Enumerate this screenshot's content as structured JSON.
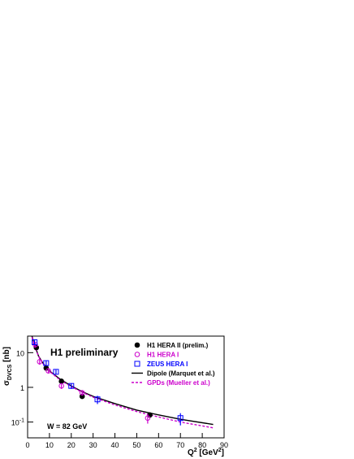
{
  "chart_data": {
    "type": "scatter",
    "annotations": [
      "H1 preliminary",
      "W = 82 GeV"
    ],
    "xlabel": {
      "symbol": "Q",
      "sup": "2",
      "unit": " [GeV",
      "unit_sup": "2",
      "close": "]"
    },
    "ylabel": {
      "symbol": "σ",
      "subscript": "DVCS",
      "unit": " [nb]"
    },
    "xlim": [
      0,
      90
    ],
    "xticks": [
      0,
      10,
      20,
      30,
      40,
      50,
      60,
      70,
      80,
      90
    ],
    "ylim": [
      0.035,
      30
    ],
    "log_y": true,
    "yticks": [
      {
        "value": 0.1,
        "label": "10",
        "exponent": "-1"
      },
      1,
      10
    ],
    "legend": "upper right",
    "series": [
      {
        "name": "H1 HERA II (prelim.)",
        "color": "#000000",
        "marker": "filled-circle",
        "x": [
          4,
          8.5,
          15.5,
          25,
          56
        ],
        "values": [
          14,
          3.6,
          1.5,
          0.55,
          0.16
        ],
        "errors": [
          2,
          0.5,
          0.2,
          0.08,
          0.03
        ]
      },
      {
        "name": "H1 HERA I",
        "color": "#cc00cc",
        "marker": "open-circle",
        "x": [
          3.5,
          5.5,
          9.5,
          15.5,
          25,
          55
        ],
        "values": [
          17,
          5.5,
          3,
          1.1,
          0.7,
          0.13
        ],
        "errors": [
          3,
          1,
          0.5,
          0.2,
          0.12,
          0.04
        ]
      },
      {
        "name": "ZEUS HERA I",
        "color": "#0000ff",
        "marker": "open-square",
        "x": [
          3.2,
          8.5,
          13,
          20,
          32,
          70
        ],
        "values": [
          20,
          5,
          2.8,
          1.1,
          0.45,
          0.13
        ],
        "errors": [
          3,
          0.8,
          0.4,
          0.2,
          0.12,
          0.05
        ]
      }
    ],
    "curves": [
      {
        "name": "Dipole (Marquet et al.)",
        "color": "#000000",
        "dash": false,
        "x": [
          2,
          3,
          4,
          5,
          7,
          10,
          15,
          20,
          25,
          30,
          40,
          50,
          60,
          70,
          85
        ],
        "values": [
          30,
          18,
          12,
          8,
          5,
          3,
          1.7,
          1.1,
          0.75,
          0.55,
          0.34,
          0.22,
          0.16,
          0.12,
          0.085
        ]
      },
      {
        "name": "GPDs (Mueller et al.)",
        "color": "#cc00cc",
        "dash": true,
        "x": [
          2,
          3,
          4,
          5,
          7,
          10,
          15,
          20,
          25,
          30,
          40,
          50,
          60,
          70,
          85
        ],
        "values": [
          28,
          17,
          11.5,
          7.8,
          4.9,
          2.9,
          1.6,
          1.05,
          0.72,
          0.52,
          0.31,
          0.2,
          0.14,
          0.1,
          0.068
        ]
      }
    ]
  }
}
